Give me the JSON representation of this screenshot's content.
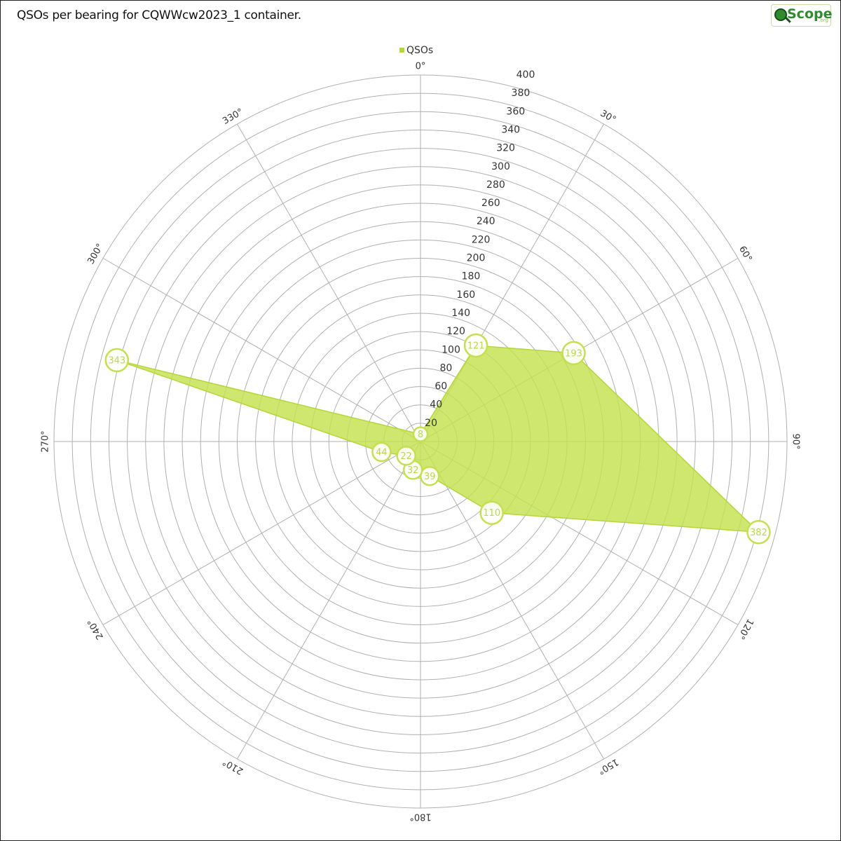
{
  "header": {
    "title": "QSOs per bearing for CQWWcw2023_1 container.",
    "logo_text": "Scope",
    "logo_tld": ".org"
  },
  "colors": {
    "series_fill": "#c5e04f",
    "series_stroke": "#b5d63a",
    "marker_stroke": "#c5e04f",
    "marker_text": "#b9d84a",
    "grid": "#b0b0b0"
  },
  "chart_data": {
    "type": "radar",
    "title": "QSOs per bearing for CQWWcw2023_1 container.",
    "legend": {
      "position": "top-center",
      "entries": [
        "QSOs"
      ]
    },
    "radial_axis": {
      "min": 0,
      "max": 400,
      "step": 20,
      "tick_labels": [
        "20",
        "40",
        "60",
        "80",
        "100",
        "120",
        "140",
        "160",
        "180",
        "200",
        "220",
        "240",
        "260",
        "280",
        "300",
        "320",
        "340",
        "360",
        "380",
        "400"
      ]
    },
    "angular_axis": {
      "labels": [
        "0°",
        "30°",
        "60°",
        "90°",
        "120°",
        "150°",
        "180°",
        "210°",
        "240°",
        "270°",
        "300°",
        "330°"
      ]
    },
    "series": [
      {
        "name": "QSOs",
        "points": [
          {
            "bearing": 0,
            "value": 8
          },
          {
            "bearing": 30,
            "value": 121
          },
          {
            "bearing": 60,
            "value": 193
          },
          {
            "bearing": 105,
            "value": 382
          },
          {
            "bearing": 135,
            "value": 110
          },
          {
            "bearing": 165,
            "value": 39
          },
          {
            "bearing": 195,
            "value": 32
          },
          {
            "bearing": 225,
            "value": 22
          },
          {
            "bearing": 255,
            "value": 44
          },
          {
            "bearing": 285,
            "value": 343
          }
        ]
      }
    ]
  }
}
